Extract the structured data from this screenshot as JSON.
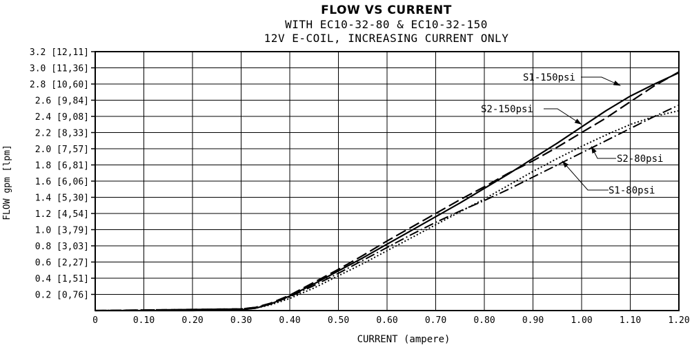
{
  "chart_data": {
    "type": "line",
    "title": "FLOW VS CURRENT",
    "subtitle_lines": [
      "WITH EC10-32-80 & EC10-32-150",
      "12V E-COIL, INCREASING CURRENT ONLY"
    ],
    "xlabel": "CURRENT (ampere)",
    "ylabel": "FLOW gpm [lpm]",
    "xlim": [
      0,
      1.2
    ],
    "ylim": [
      0,
      3.2
    ],
    "grid": true,
    "x_ticks": [
      {
        "value": 0,
        "label": "0"
      },
      {
        "value": 0.1,
        "label": "0.10"
      },
      {
        "value": 0.2,
        "label": "0.20"
      },
      {
        "value": 0.3,
        "label": "0.30"
      },
      {
        "value": 0.4,
        "label": "0.40"
      },
      {
        "value": 0.5,
        "label": "0.50"
      },
      {
        "value": 0.6,
        "label": "0.60"
      },
      {
        "value": 0.7,
        "label": "0.70"
      },
      {
        "value": 0.8,
        "label": "0.80"
      },
      {
        "value": 0.9,
        "label": "0.90"
      },
      {
        "value": 1.0,
        "label": "1.00"
      },
      {
        "value": 1.1,
        "label": "1.10"
      },
      {
        "value": 1.2,
        "label": "1.20"
      }
    ],
    "y_ticks": [
      {
        "value": 0.2,
        "label": "0.2 [0,76]"
      },
      {
        "value": 0.4,
        "label": "0.4 [1,51]"
      },
      {
        "value": 0.6,
        "label": "0.6 [2,27]"
      },
      {
        "value": 0.8,
        "label": "0.8 [3,03]"
      },
      {
        "value": 1.0,
        "label": "1.0 [3,79]"
      },
      {
        "value": 1.2,
        "label": "1.2 [4,54]"
      },
      {
        "value": 1.4,
        "label": "1.4 [5,30]"
      },
      {
        "value": 1.6,
        "label": "1.6 [6,06]"
      },
      {
        "value": 1.8,
        "label": "1.8 [6,81]"
      },
      {
        "value": 2.0,
        "label": "2.0 [7,57]"
      },
      {
        "value": 2.2,
        "label": "2.2 [8,33]"
      },
      {
        "value": 2.4,
        "label": "2.4 [9,08]"
      },
      {
        "value": 2.6,
        "label": "2.6 [9,84]"
      },
      {
        "value": 2.8,
        "label": "2.8 [10,60]"
      },
      {
        "value": 3.0,
        "label": "3.0 [11,36]"
      },
      {
        "value": 3.2,
        "label": "3.2 [12,11]"
      }
    ],
    "series": [
      {
        "name": "S1-150psi",
        "style": "solid",
        "x": [
          0,
          0.2,
          0.3,
          0.33,
          0.36,
          0.4,
          0.45,
          0.5,
          0.55,
          0.6,
          0.65,
          0.7,
          0.75,
          0.8,
          0.85,
          0.9,
          0.95,
          1.0,
          1.05,
          1.1,
          1.15,
          1.2
        ],
        "y": [
          0,
          0,
          0.01,
          0.03,
          0.08,
          0.18,
          0.33,
          0.49,
          0.65,
          0.82,
          0.99,
          1.16,
          1.33,
          1.51,
          1.69,
          1.88,
          2.07,
          2.27,
          2.47,
          2.65,
          2.8,
          2.94
        ]
      },
      {
        "name": "S2-150psi",
        "style": "dashed",
        "x": [
          0,
          0.3,
          0.33,
          0.36,
          0.4,
          0.45,
          0.5,
          0.55,
          0.6,
          0.65,
          0.7,
          0.75,
          0.8,
          0.85,
          0.9,
          0.95,
          1.0,
          1.05,
          1.1,
          1.15,
          1.2
        ],
        "y": [
          0,
          0.02,
          0.04,
          0.09,
          0.19,
          0.35,
          0.51,
          0.68,
          0.86,
          1.03,
          1.2,
          1.37,
          1.53,
          1.7,
          1.85,
          2.02,
          2.2,
          2.38,
          2.58,
          2.78,
          2.95
        ]
      },
      {
        "name": "S2-80psi",
        "style": "dashdot",
        "x": [
          0,
          0.3,
          0.33,
          0.36,
          0.4,
          0.45,
          0.5,
          0.55,
          0.6,
          0.65,
          0.7,
          0.75,
          0.8,
          0.85,
          0.9,
          0.95,
          1.0,
          1.05,
          1.1,
          1.15,
          1.2
        ],
        "y": [
          0,
          0.02,
          0.04,
          0.08,
          0.17,
          0.31,
          0.46,
          0.62,
          0.78,
          0.94,
          1.09,
          1.23,
          1.36,
          1.5,
          1.65,
          1.8,
          1.95,
          2.1,
          2.25,
          2.4,
          2.54
        ]
      },
      {
        "name": "S1-80psi",
        "style": "dotted",
        "x": [
          0,
          0.3,
          0.33,
          0.36,
          0.4,
          0.45,
          0.5,
          0.55,
          0.6,
          0.65,
          0.7,
          0.75,
          0.8,
          0.85,
          0.9,
          0.95,
          1.0,
          1.05,
          1.1,
          1.15,
          1.2
        ],
        "y": [
          0,
          0.01,
          0.03,
          0.07,
          0.15,
          0.28,
          0.43,
          0.58,
          0.74,
          0.9,
          1.06,
          1.22,
          1.38,
          1.55,
          1.72,
          1.88,
          2.03,
          2.17,
          2.3,
          2.4,
          2.47
        ]
      }
    ],
    "annotations": [
      {
        "text": "S1-150psi",
        "series": "S1-150psi",
        "point": [
          1.08,
          2.78
        ]
      },
      {
        "text": "S2-150psi",
        "series": "S2-150psi",
        "point": [
          1.0,
          2.3
        ]
      },
      {
        "text": "S2-80psi",
        "series": "S2-80psi",
        "point": [
          1.02,
          2.03
        ]
      },
      {
        "text": "S1-80psi",
        "series": "S1-80psi",
        "point": [
          0.96,
          1.85
        ]
      }
    ]
  }
}
